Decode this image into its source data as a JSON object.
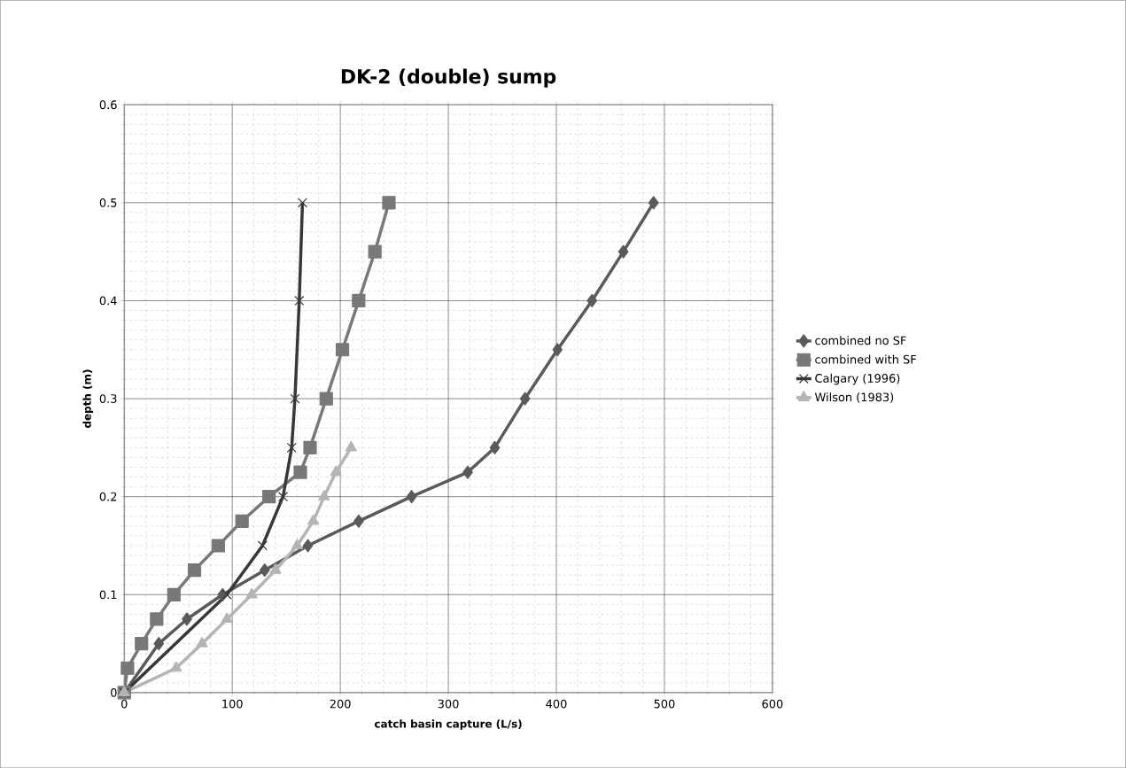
{
  "chart_data": {
    "type": "line",
    "title": "DK-2 (double) sump",
    "xlabel": "catch basin capture (L/s)",
    "ylabel": "depth (m)",
    "xlim": [
      0,
      600
    ],
    "xticks": [
      0,
      100,
      200,
      300,
      400,
      500,
      600
    ],
    "ylim": [
      0,
      0.6
    ],
    "yticks": [
      0,
      0.1,
      0.2,
      0.3,
      0.4,
      0.5,
      0.6
    ],
    "grid": true,
    "legend": "right",
    "line_style": "solid",
    "series": [
      {
        "name": "combined no SF",
        "color": "#5a5a5a",
        "marker": "diamond",
        "x": [
          0,
          32,
          58,
          91,
          130,
          170,
          217,
          266,
          318,
          343,
          371,
          401,
          433,
          462,
          490
        ],
        "values": [
          0,
          0.05,
          0.075,
          0.1,
          0.125,
          0.15,
          0.175,
          0.2,
          0.225,
          0.25,
          0.3,
          0.35,
          0.4,
          0.45,
          0.5
        ]
      },
      {
        "name": "combined with SF",
        "color": "#787878",
        "marker": "square",
        "x": [
          0,
          3,
          16,
          30,
          46,
          65,
          87,
          109,
          134,
          163,
          172,
          187,
          202,
          217,
          232,
          245
        ],
        "values": [
          0,
          0.025,
          0.05,
          0.075,
          0.1,
          0.125,
          0.15,
          0.175,
          0.2,
          0.225,
          0.25,
          0.3,
          0.35,
          0.4,
          0.45,
          0.5
        ]
      },
      {
        "name": "Calgary (1996)",
        "color": "#383838",
        "marker": "cross",
        "x": [
          0,
          95,
          128,
          147,
          155,
          158,
          162,
          165
        ],
        "values": [
          0,
          0.1,
          0.15,
          0.2,
          0.25,
          0.3,
          0.4,
          0.5
        ]
      },
      {
        "name": "Wilson (1983)",
        "color": "#b4b4b4",
        "marker": "triangle",
        "x": [
          0,
          48,
          72,
          95,
          118,
          140,
          160,
          175,
          185,
          196,
          210
        ],
        "values": [
          0,
          0.025,
          0.05,
          0.075,
          0.1,
          0.125,
          0.15,
          0.175,
          0.2,
          0.225,
          0.25
        ]
      }
    ]
  }
}
